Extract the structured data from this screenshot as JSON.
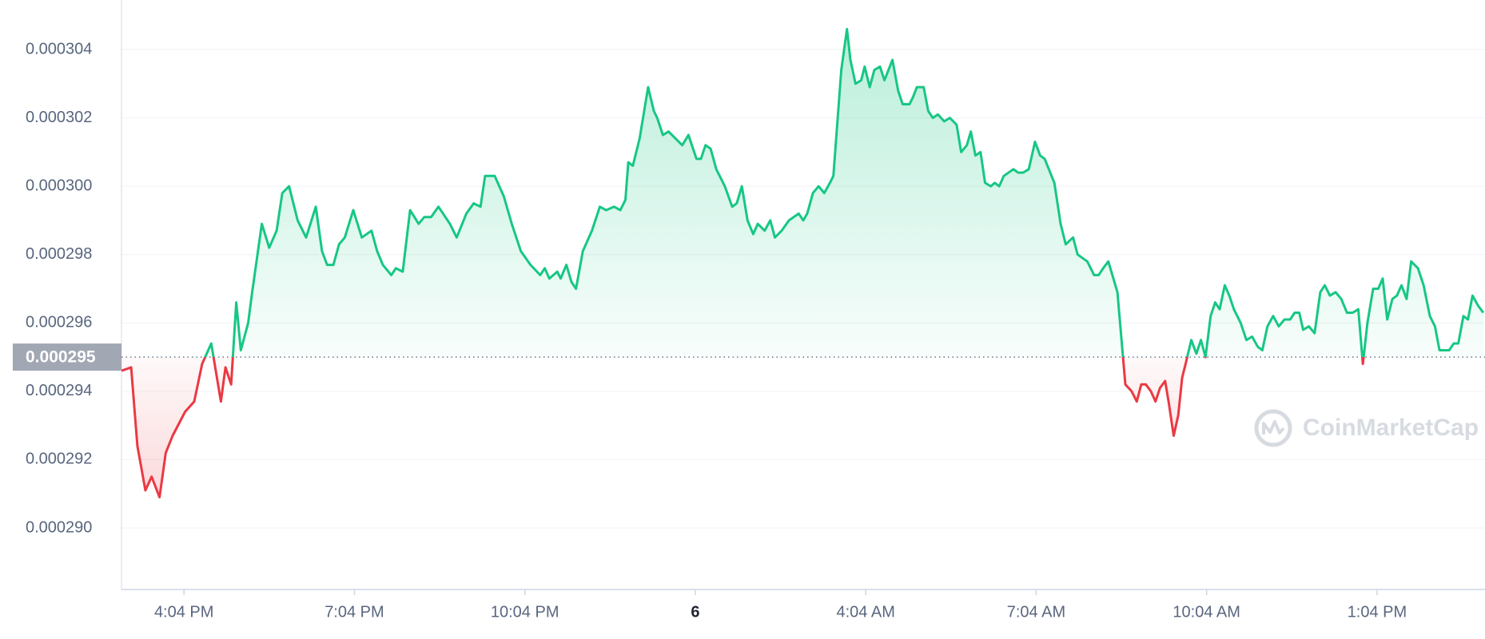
{
  "chart_data": {
    "type": "line",
    "x": [
      0,
      0.17,
      0.28,
      0.42,
      0.53,
      0.67,
      0.78,
      0.9,
      1.12,
      1.28,
      1.42,
      1.58,
      1.75,
      1.83,
      1.93,
      2.02,
      2.1,
      2.23,
      2.3,
      2.47,
      2.6,
      2.73,
      2.83,
      2.95,
      3.1,
      3.25,
      3.42,
      3.53,
      3.62,
      3.73,
      3.83,
      3.93,
      4.08,
      4.23,
      4.4,
      4.5,
      4.6,
      4.75,
      4.83,
      4.95,
      5.08,
      5.23,
      5.33,
      5.45,
      5.58,
      5.78,
      5.9,
      6.07,
      6.2,
      6.32,
      6.4,
      6.57,
      6.73,
      6.87,
      7.03,
      7.2,
      7.37,
      7.45,
      7.53,
      7.67,
      7.73,
      7.83,
      7.92,
      8,
      8.12,
      8.28,
      8.42,
      8.53,
      8.67,
      8.78,
      8.87,
      8.92,
      9,
      9.12,
      9.27,
      9.37,
      9.43,
      9.53,
      9.63,
      9.75,
      9.87,
      9.98,
      10.12,
      10.2,
      10.28,
      10.37,
      10.47,
      10.62,
      10.75,
      10.83,
      10.92,
      11.02,
      11.12,
      11.2,
      11.32,
      11.42,
      11.5,
      11.62,
      11.75,
      11.92,
      12,
      12.07,
      12.17,
      12.27,
      12.37,
      12.47,
      12.53,
      12.67,
      12.77,
      12.83,
      12.92,
      13.02,
      13.08,
      13.17,
      13.25,
      13.35,
      13.43,
      13.57,
      13.67,
      13.75,
      13.87,
      13.93,
      14,
      14.12,
      14.2,
      14.28,
      14.37,
      14.48,
      14.58,
      14.7,
      14.78,
      14.88,
      14.95,
      15.03,
      15.12,
      15.2,
      15.3,
      15.37,
      15.45,
      15.53,
      15.7,
      15.78,
      15.87,
      15.97,
      16.08,
      16.17,
      16.25,
      16.42,
      16.53,
      16.62,
      16.75,
      16.83,
      17,
      17.12,
      17.2,
      17.28,
      17.37,
      17.53,
      17.67,
      17.78,
      17.87,
      17.95,
      18.03,
      18.12,
      18.2,
      18.28,
      18.37,
      18.43,
      18.52,
      18.6,
      18.67,
      18.73,
      18.83,
      18.92,
      19,
      19.08,
      19.17,
      19.25,
      19.33,
      19.42,
      19.5,
      19.58,
      19.7,
      19.8,
      19.9,
      20,
      20.08,
      20.17,
      20.27,
      20.37,
      20.47,
      20.57,
      20.65,
      20.73,
      20.8,
      20.9,
      21,
      21.1,
      21.18,
      21.27,
      21.37,
      21.47,
      21.57,
      21.67,
      21.77,
      21.85,
      21.93,
      22.03,
      22.12,
      22.2,
      22.28,
      22.37,
      22.45,
      22.53,
      22.62,
      22.7,
      22.82,
      22.92,
      23.03,
      23.12,
      23.2,
      23.37,
      23.45,
      23.53,
      23.62,
      23.7,
      23.78,
      23.88,
      23.97
    ],
    "values": [
      0.0002946,
      0.0002947,
      0.0002924,
      0.0002911,
      0.0002915,
      0.0002909,
      0.0002922,
      0.0002927,
      0.0002934,
      0.0002937,
      0.0002948,
      0.0002954,
      0.0002937,
      0.0002947,
      0.0002942,
      0.0002966,
      0.0002952,
      0.000296,
      0.0002969,
      0.0002989,
      0.0002982,
      0.0002987,
      0.0002998,
      0.0003,
      0.000299,
      0.0002985,
      0.0002994,
      0.0002981,
      0.0002977,
      0.0002977,
      0.0002983,
      0.0002985,
      0.0002993,
      0.0002985,
      0.0002987,
      0.0002981,
      0.0002977,
      0.0002974,
      0.0002976,
      0.0002975,
      0.0002993,
      0.0002989,
      0.0002991,
      0.0002991,
      0.0002994,
      0.0002989,
      0.0002985,
      0.0002992,
      0.0002995,
      0.0002994,
      0.0003003,
      0.0003003,
      0.0002997,
      0.0002989,
      0.0002981,
      0.0002977,
      0.0002974,
      0.0002976,
      0.0002973,
      0.0002975,
      0.0002973,
      0.0002977,
      0.0002972,
      0.000297,
      0.0002981,
      0.0002987,
      0.0002994,
      0.0002993,
      0.0002994,
      0.0002993,
      0.0002996,
      0.0003007,
      0.0003006,
      0.0003014,
      0.0003029,
      0.0003022,
      0.000302,
      0.0003015,
      0.0003016,
      0.0003014,
      0.0003012,
      0.0003015,
      0.0003008,
      0.0003008,
      0.0003012,
      0.0003011,
      0.0003005,
      0.0003,
      0.0002994,
      0.0002995,
      0.0003,
      0.000299,
      0.0002986,
      0.0002989,
      0.0002987,
      0.000299,
      0.0002985,
      0.0002987,
      0.000299,
      0.0002992,
      0.000299,
      0.0002992,
      0.0002998,
      0.0003,
      0.0002998,
      0.0003001,
      0.0003003,
      0.0003034,
      0.0003046,
      0.0003037,
      0.000303,
      0.0003031,
      0.0003035,
      0.0003029,
      0.0003034,
      0.0003035,
      0.0003031,
      0.0003037,
      0.0003028,
      0.0003024,
      0.0003024,
      0.0003026,
      0.0003029,
      0.0003029,
      0.0003022,
      0.000302,
      0.0003021,
      0.0003019,
      0.000302,
      0.0003018,
      0.000301,
      0.0003012,
      0.0003016,
      0.0003009,
      0.000301,
      0.0003001,
      0.0003,
      0.0003001,
      0.0003,
      0.0003003,
      0.0003005,
      0.0003004,
      0.0003004,
      0.0003005,
      0.0003013,
      0.0003009,
      0.0003008,
      0.0003001,
      0.0002989,
      0.0002983,
      0.0002985,
      0.000298,
      0.0002978,
      0.0002974,
      0.0002974,
      0.0002976,
      0.0002978,
      0.0002969,
      0.0002942,
      0.000294,
      0.0002937,
      0.0002942,
      0.0002942,
      0.000294,
      0.0002937,
      0.0002941,
      0.0002943,
      0.0002937,
      0.0002927,
      0.0002933,
      0.0002944,
      0.0002948,
      0.0002955,
      0.0002951,
      0.0002955,
      0.000295,
      0.0002962,
      0.0002966,
      0.0002964,
      0.0002971,
      0.0002968,
      0.0002964,
      0.000296,
      0.0002955,
      0.0002956,
      0.0002953,
      0.0002952,
      0.0002959,
      0.0002962,
      0.0002959,
      0.0002961,
      0.0002961,
      0.0002963,
      0.0002963,
      0.0002958,
      0.0002959,
      0.0002957,
      0.0002969,
      0.0002971,
      0.0002968,
      0.0002969,
      0.0002967,
      0.0002963,
      0.0002963,
      0.0002964,
      0.0002948,
      0.000296,
      0.000297,
      0.000297,
      0.0002973,
      0.0002961,
      0.0002967,
      0.0002968,
      0.0002971,
      0.0002967,
      0.0002978,
      0.0002976,
      0.0002971,
      0.0002962,
      0.0002959,
      0.0002952,
      0.0002952,
      0.0002954,
      0.0002954,
      0.0002962,
      0.0002961,
      0.0002968,
      0.0002965,
      0.0002963
    ],
    "baseline": 0.000295,
    "color_up": "#16c784",
    "color_down": "#ea3943",
    "xlim": [
      0,
      24
    ],
    "xticks": [
      {
        "value": 1.1,
        "label": "4:04 PM"
      },
      {
        "value": 4.1,
        "label": "7:04 PM"
      },
      {
        "value": 7.1,
        "label": "10:04 PM"
      },
      {
        "value": 10.1,
        "label": "6"
      },
      {
        "value": 13.1,
        "label": "4:04 AM"
      },
      {
        "value": 16.1,
        "label": "7:04 AM"
      },
      {
        "value": 19.1,
        "label": "10:04 AM"
      },
      {
        "value": 22.1,
        "label": "1:04 PM"
      }
    ],
    "ylim": [
      0.0002882,
      0.00030545
    ],
    "yticks": [
      {
        "value": 0.00029,
        "label": "0.000290"
      },
      0.000292,
      0.000294,
      0.000296,
      0.000298,
      {
        "value": 0.0003,
        "label": "0.000300"
      },
      0.000302,
      0.000304
    ],
    "grid": true,
    "watermark": "CoinMarketCap"
  }
}
